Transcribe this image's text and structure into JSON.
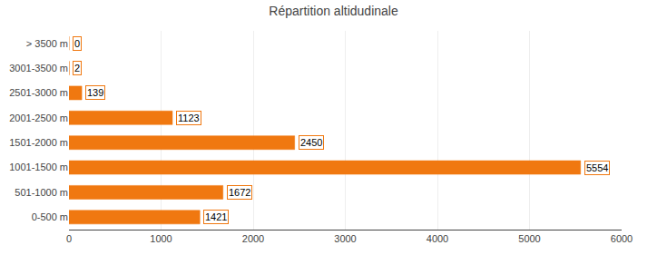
{
  "chart_data": {
    "type": "bar",
    "orientation": "horizontal",
    "title": "Répartition altidudinale",
    "categories": [
      "> 3500 m",
      "3001-3500 m",
      "2501-3000 m",
      "2001-2500 m",
      "1501-2000 m",
      "1001-1500 m",
      "501-1000 m",
      "0-500 m"
    ],
    "values": [
      0,
      2,
      139,
      1123,
      2450,
      5554,
      1672,
      1421
    ],
    "color": "#F07810",
    "xlim": [
      0,
      6000
    ],
    "xticks": [
      0,
      1000,
      2000,
      3000,
      4000,
      5000,
      6000
    ],
    "grid": true,
    "data_labels": true
  }
}
